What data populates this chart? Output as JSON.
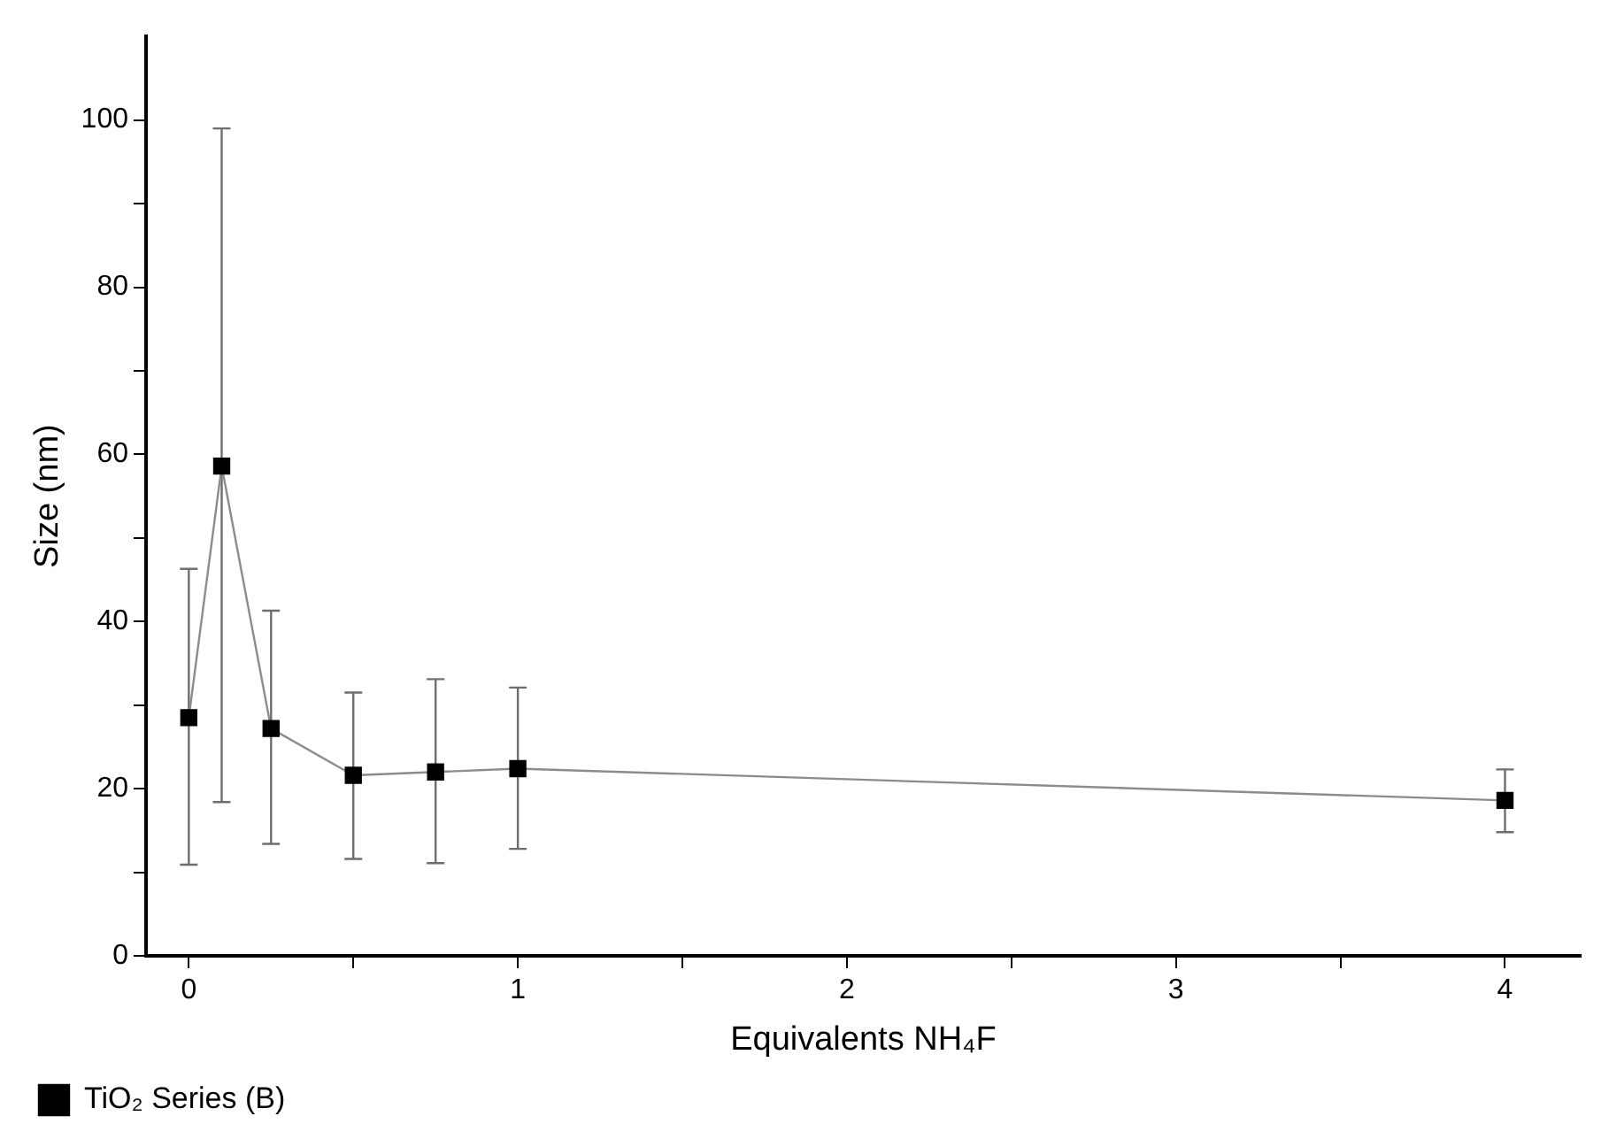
{
  "chart_data": {
    "type": "line",
    "xlabel": "Equivalents NH₄F",
    "ylabel": "Size (nm)",
    "x": [
      0,
      0.1,
      0.25,
      0.5,
      0.75,
      1,
      4
    ],
    "series": [
      {
        "name": "TiO₂ Series (B)",
        "color": "#000000",
        "values": [
          28.5,
          58.6,
          27.2,
          21.6,
          22.0,
          22.4,
          18.6
        ],
        "errors": [
          [
            10.9,
            46.3
          ],
          [
            18.4,
            99.0
          ],
          [
            13.4,
            41.3
          ],
          [
            11.6,
            31.5
          ],
          [
            11.1,
            33.1
          ],
          [
            12.8,
            32.1
          ],
          [
            14.8,
            22.3
          ]
        ]
      }
    ],
    "xlim": [
      -0.13,
      4.23
    ],
    "ylim": [
      0,
      110
    ],
    "xticks": [
      0,
      {
        "value": 0.5,
        "label": null
      },
      1,
      {
        "value": 1.5,
        "label": null
      },
      2,
      {
        "value": 2.5,
        "label": null
      },
      3,
      {
        "value": 3.5,
        "label": null
      },
      4
    ],
    "yticks": [
      0,
      {
        "value": 10,
        "label": null
      },
      20,
      {
        "value": 30,
        "label": null
      },
      40,
      {
        "value": 50,
        "label": null
      },
      60,
      {
        "value": 70,
        "label": null
      },
      80,
      {
        "value": 90,
        "label": null
      },
      100
    ],
    "grid": false,
    "legend": "bottom left",
    "marker": "square",
    "line_style": "solid"
  }
}
